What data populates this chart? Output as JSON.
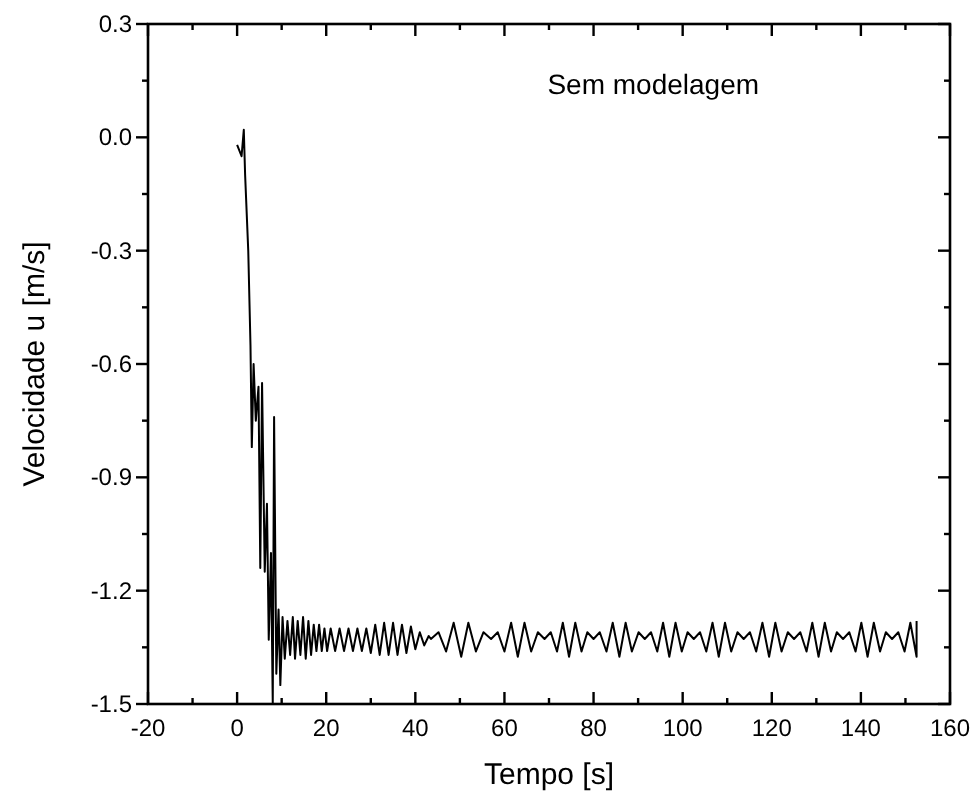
{
  "chart_data": {
    "type": "line",
    "xlabel": "Tempo [s]",
    "ylabel": "Velocidade u [m/s]",
    "annotations": [
      "Sem modelagem"
    ],
    "xlim": [
      -20,
      160
    ],
    "ylim": [
      -1.5,
      0.3
    ],
    "xticks": [
      -20,
      {
        "value": -10,
        "label": null
      },
      0,
      {
        "value": 10,
        "label": null
      },
      20,
      {
        "value": 30,
        "label": null
      },
      40,
      {
        "value": 50,
        "label": null
      },
      60,
      {
        "value": 70,
        "label": null
      },
      80,
      {
        "value": 90,
        "label": null
      },
      100,
      {
        "value": 110,
        "label": null
      },
      120,
      {
        "value": 130,
        "label": null
      },
      140,
      {
        "value": 150,
        "label": null
      },
      160
    ],
    "yticks": [
      {
        "value": -1.5,
        "label": "-1.5"
      },
      {
        "value": -1.35,
        "label": null
      },
      {
        "value": -1.2,
        "label": "-1.2"
      },
      {
        "value": -1.05,
        "label": null
      },
      {
        "value": -0.9,
        "label": "-0.9"
      },
      {
        "value": -0.75,
        "label": null
      },
      {
        "value": -0.6,
        "label": "-0.6"
      },
      {
        "value": -0.45,
        "label": null
      },
      {
        "value": -0.3,
        "label": "-0.3"
      },
      {
        "value": -0.15,
        "label": null
      },
      {
        "value": 0,
        "label": "0.0"
      },
      {
        "value": 0.15,
        "label": null
      },
      {
        "value": 0.3,
        "label": "0.3"
      }
    ],
    "grid": false,
    "marker": "none",
    "line_style": "solid",
    "series": [
      {
        "color": "#000000",
        "x": [
          0,
          1,
          1.5,
          1.8,
          2.5,
          3,
          3.3,
          3.7,
          4.2,
          4.8,
          5.2,
          5.6,
          6.2,
          6.7,
          7.1,
          7.6,
          8,
          8.3,
          8.8,
          9.3,
          9.7,
          10.2,
          10.7,
          11.3,
          11.9,
          12.5,
          13,
          13.6,
          14.2,
          14.8,
          15.4,
          16,
          16.6,
          17.2,
          17.8,
          18.4,
          19,
          19.6,
          20.2,
          21,
          22,
          23,
          24,
          25,
          26,
          27,
          28,
          29,
          30,
          31,
          32,
          33,
          34,
          35,
          36,
          37,
          38,
          39,
          40,
          41,
          42,
          43,
          43.5,
          45.2,
          46.9,
          48.6,
          50.3,
          51.9,
          53.6,
          55.3,
          57,
          58.5,
          60,
          61.5,
          63,
          64.5,
          66,
          67.5,
          69,
          70.4,
          71.8,
          73.1,
          74.5,
          75.9,
          77.3,
          78.6,
          80,
          81.4,
          82.9,
          84.3,
          85.8,
          87.2,
          88.6,
          90.1,
          91.5,
          92.9,
          94.3,
          95.6,
          97,
          98.4,
          99.8,
          101.1,
          102.5,
          103.9,
          105.3,
          106.7,
          108.1,
          109.5,
          110.9,
          112.3,
          113.7,
          115.1,
          116.5,
          117.9,
          119.4,
          120.8,
          122.2,
          123.6,
          125,
          126.4,
          127.8,
          129.1,
          130.5,
          131.9,
          133.3,
          134.6,
          136,
          137.4,
          138.8,
          140.1,
          141.5,
          142.9,
          144.3,
          145.6,
          147,
          148.4,
          149.8,
          151.1,
          152.5,
          152.5
        ],
        "values": [
          -0.02,
          -0.05,
          0.02,
          -0.1,
          -0.3,
          -0.55,
          -0.82,
          -0.6,
          -0.75,
          -0.66,
          -1.14,
          -0.65,
          -1.15,
          -0.97,
          -1.33,
          -1.1,
          -1.5,
          -0.74,
          -1.42,
          -1.25,
          -1.45,
          -1.27,
          -1.38,
          -1.28,
          -1.37,
          -1.27,
          -1.38,
          -1.28,
          -1.37,
          -1.27,
          -1.38,
          -1.28,
          -1.37,
          -1.29,
          -1.36,
          -1.29,
          -1.36,
          -1.3,
          -1.36,
          -1.3,
          -1.36,
          -1.3,
          -1.36,
          -1.3,
          -1.36,
          -1.3,
          -1.36,
          -1.3,
          -1.365,
          -1.29,
          -1.37,
          -1.285,
          -1.37,
          -1.285,
          -1.37,
          -1.29,
          -1.365,
          -1.295,
          -1.355,
          -1.31,
          -1.345,
          -1.32,
          -1.328,
          -1.31,
          -1.361,
          -1.285,
          -1.375,
          -1.285,
          -1.361,
          -1.31,
          -1.328,
          -1.31,
          -1.361,
          -1.285,
          -1.375,
          -1.285,
          -1.361,
          -1.31,
          -1.328,
          -1.31,
          -1.361,
          -1.285,
          -1.375,
          -1.285,
          -1.361,
          -1.31,
          -1.328,
          -1.31,
          -1.361,
          -1.285,
          -1.375,
          -1.285,
          -1.361,
          -1.31,
          -1.328,
          -1.31,
          -1.361,
          -1.285,
          -1.375,
          -1.285,
          -1.361,
          -1.31,
          -1.328,
          -1.31,
          -1.361,
          -1.285,
          -1.375,
          -1.285,
          -1.361,
          -1.31,
          -1.328,
          -1.31,
          -1.361,
          -1.285,
          -1.375,
          -1.285,
          -1.361,
          -1.31,
          -1.328,
          -1.31,
          -1.361,
          -1.285,
          -1.375,
          -1.285,
          -1.361,
          -1.31,
          -1.328,
          -1.31,
          -1.361,
          -1.285,
          -1.375,
          -1.285,
          -1.361,
          -1.31,
          -1.328,
          -1.31,
          -1.361,
          -1.285,
          -1.375,
          -1.28
        ]
      }
    ]
  }
}
